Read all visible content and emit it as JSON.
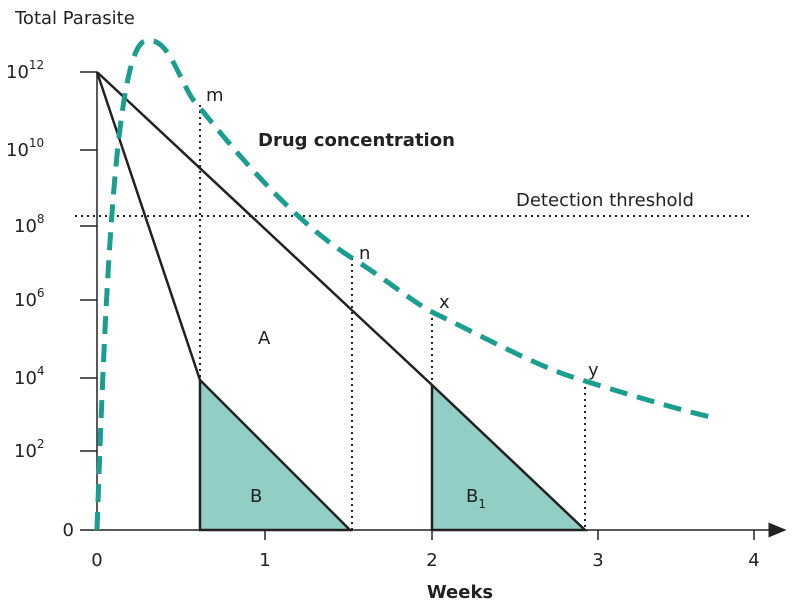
{
  "y_axis": {
    "label": "Total Parasite",
    "ticks": [
      {
        "base": "0"
      },
      {
        "base": "10",
        "exp": "2"
      },
      {
        "base": "10",
        "exp": "4"
      },
      {
        "base": "10",
        "exp": "6"
      },
      {
        "base": "10",
        "exp": "8"
      },
      {
        "base": "10",
        "exp": "10"
      },
      {
        "base": "10",
        "exp": "12"
      }
    ]
  },
  "x_axis": {
    "label": "Weeks",
    "ticks": [
      "0",
      "1",
      "2",
      "3",
      "4"
    ]
  },
  "annotations": {
    "drug": "Drug concentration",
    "threshold": "Detection threshold",
    "m": "m",
    "n": "n",
    "x": "x",
    "y": "y",
    "A": "A",
    "B": "B",
    "B1": {
      "base": "B",
      "sub": "1"
    }
  }
}
